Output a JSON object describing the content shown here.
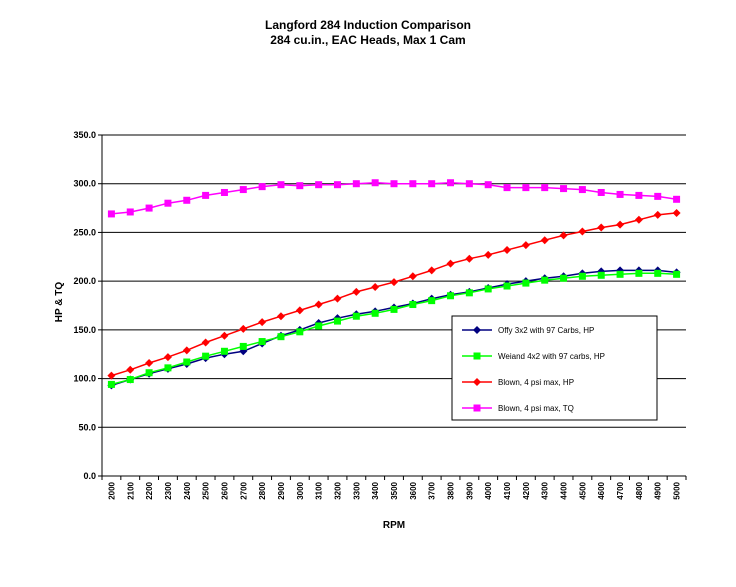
{
  "chart_data": {
    "type": "line",
    "title": "Langford 284 Induction Comparison",
    "subtitle": "284 cu.in., EAC Heads, Max 1 Cam",
    "xlabel": "RPM",
    "ylabel": "HP & TQ",
    "ylim": [
      0,
      350
    ],
    "yticks": [
      "0.0",
      "50.0",
      "100.0",
      "150.0",
      "200.0",
      "250.0",
      "300.0",
      "350.0"
    ],
    "grid": "horizontal",
    "legend_position": "right, inside plot",
    "x": [
      2000,
      2100,
      2200,
      2300,
      2400,
      2500,
      2600,
      2700,
      2800,
      2900,
      3000,
      3100,
      3200,
      3300,
      3400,
      3500,
      3600,
      3700,
      3800,
      3900,
      4000,
      4100,
      4200,
      4300,
      4400,
      4500,
      4600,
      4700,
      4800,
      4900,
      5000
    ],
    "series": [
      {
        "name": "Offy 3x2 with 97 Carbs, HP",
        "color": "#000080",
        "marker": "diamond",
        "values": [
          93,
          99,
          105,
          110,
          115,
          121,
          125,
          128,
          136,
          144,
          150,
          157,
          162,
          166,
          169,
          173,
          177,
          182,
          186,
          189,
          193,
          197,
          200,
          203,
          205,
          208,
          210,
          211,
          211,
          211,
          209
        ]
      },
      {
        "name": "Weiand 4x2 with 97 carbs, HP",
        "color": "#00ff00",
        "marker": "square",
        "values": [
          94,
          99,
          106,
          111,
          117,
          123,
          128,
          133,
          138,
          143,
          148,
          154,
          159,
          164,
          167,
          171,
          176,
          180,
          185,
          188,
          192,
          195,
          198,
          201,
          203,
          205,
          206,
          207,
          208,
          208,
          207
        ]
      },
      {
        "name": "Blown, 4 psi max, HP",
        "color": "#ff0000",
        "marker": "diamond",
        "values": [
          103,
          109,
          116,
          122,
          129,
          137,
          144,
          151,
          158,
          164,
          170,
          176,
          182,
          189,
          194,
          199,
          205,
          211,
          218,
          223,
          227,
          232,
          237,
          242,
          247,
          251,
          255,
          258,
          263,
          268,
          270
        ]
      },
      {
        "name": "Blown, 4 psi max, TQ",
        "color": "#ff00ff",
        "marker": "square",
        "values": [
          269,
          271,
          275,
          280,
          283,
          288,
          291,
          294,
          297,
          299,
          298,
          299,
          299,
          300,
          301,
          300,
          300,
          300,
          301,
          300,
          299,
          296,
          296,
          296,
          295,
          294,
          291,
          289,
          288,
          287,
          284
        ]
      }
    ]
  }
}
